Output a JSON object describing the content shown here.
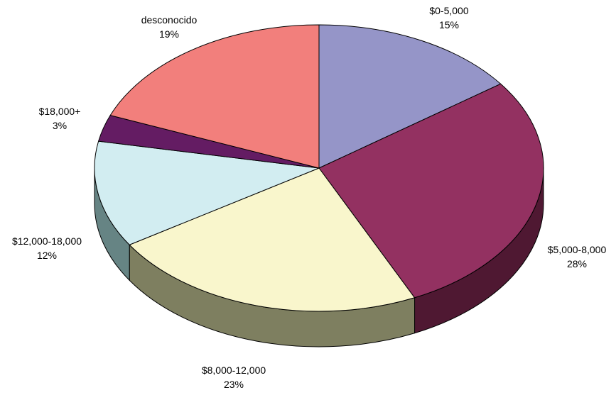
{
  "chart_data": {
    "type": "pie",
    "style": "3d",
    "title": "",
    "slices": [
      {
        "name": "$0-5,000",
        "label": "$0-5,000",
        "percent_label": "15%",
        "value": 15,
        "color": "#9595c8",
        "side_color": "#5f5f8a"
      },
      {
        "name": "$5,000-8,000",
        "label": "$5,000-8,000",
        "percent_label": "28%",
        "value": 28,
        "color": "#933161",
        "side_color": "#4f1832"
      },
      {
        "name": "$8,000-12,000",
        "label": "$8,000-12,000",
        "percent_label": "23%",
        "value": 23,
        "color": "#f9f6cc",
        "side_color": "#7e7f60"
      },
      {
        "name": "$12,000-18,000",
        "label": "$12,000-18,000",
        "percent_label": "12%",
        "value": 12,
        "color": "#d2edf1",
        "side_color": "#668484"
      },
      {
        "name": "$18,000+",
        "label": "$18,000+",
        "percent_label": "3%",
        "value": 3,
        "color": "#641c63",
        "side_color": "#3a0f3a"
      },
      {
        "name": "desconocido",
        "label": "desconocido",
        "percent_label": "19%",
        "value": 19,
        "color": "#f27f7c",
        "side_color": "#9a4a48"
      }
    ],
    "start": "12 o'clock",
    "direction": "clockwise"
  }
}
